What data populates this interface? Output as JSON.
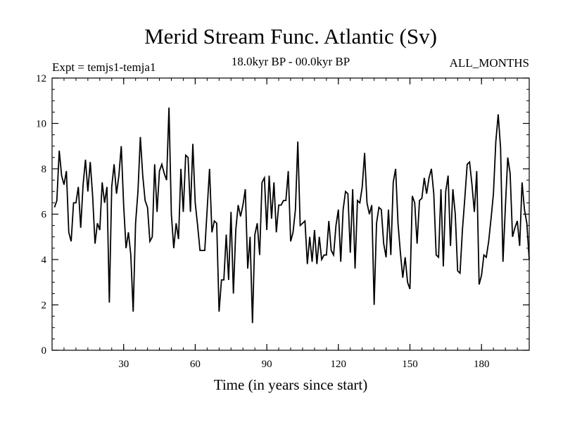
{
  "chart_data": {
    "type": "line",
    "title": "Merid Stream Func. Atlantic (Sv)",
    "subtitle_left": "Expt = temjs1-temja1",
    "subtitle_center": "18.0kyr BP - 00.0kyr BP",
    "subtitle_right": "ALL_MONTHS",
    "xlabel": "Time (in years since start)",
    "ylabel": "",
    "xlim": [
      0,
      200
    ],
    "ylim": [
      0,
      12
    ],
    "xticks": [
      30,
      60,
      90,
      120,
      150,
      180
    ],
    "yticks": [
      0,
      2,
      4,
      6,
      8,
      10,
      12
    ],
    "grid": false,
    "series": [
      {
        "name": "Merid Stream Func. Atlantic",
        "color": "#000000",
        "x": [
          1,
          2,
          3,
          4,
          5,
          6,
          7,
          8,
          9,
          10,
          11,
          12,
          13,
          14,
          15,
          16,
          17,
          18,
          19,
          20,
          21,
          22,
          23,
          24,
          25,
          26,
          27,
          28,
          29,
          30,
          31,
          32,
          33,
          34,
          35,
          36,
          37,
          38,
          39,
          40,
          41,
          42,
          43,
          44,
          45,
          46,
          47,
          48,
          49,
          50,
          51,
          52,
          53,
          54,
          55,
          56,
          57,
          58,
          59,
          60,
          61,
          62,
          63,
          64,
          65,
          66,
          67,
          68,
          69,
          70,
          71,
          72,
          73,
          74,
          75,
          76,
          77,
          78,
          79,
          80,
          81,
          82,
          83,
          84,
          85,
          86,
          87,
          88,
          89,
          90,
          91,
          92,
          93,
          94,
          95,
          96,
          97,
          98,
          99,
          100,
          101,
          102,
          103,
          104,
          105,
          106,
          107,
          108,
          109,
          110,
          111,
          112,
          113,
          114,
          115,
          116,
          117,
          118,
          119,
          120,
          121,
          122,
          123,
          124,
          125,
          126,
          127,
          128,
          129,
          130,
          131,
          132,
          133,
          134,
          135,
          136,
          137,
          138,
          139,
          140,
          141,
          142,
          143,
          144,
          145,
          146,
          147,
          148,
          149,
          150,
          151,
          152,
          153,
          154,
          155,
          156,
          157,
          158,
          159,
          160,
          161,
          162,
          163,
          164,
          165,
          166,
          167,
          168,
          169,
          170,
          171,
          172,
          173,
          174,
          175,
          176,
          177,
          178,
          179,
          180,
          181,
          182,
          183,
          184,
          185,
          186,
          187,
          188,
          189,
          190,
          191,
          192,
          193,
          194,
          195,
          196,
          197,
          198,
          199,
          200
        ],
        "values": [
          6.3,
          6.6,
          8.8,
          7.7,
          7.3,
          7.9,
          5.2,
          4.8,
          6.5,
          6.5,
          7.2,
          5.4,
          7.3,
          8.4,
          7.0,
          8.3,
          6.8,
          4.7,
          5.6,
          5.3,
          7.4,
          6.5,
          7.2,
          2.1,
          7.2,
          8.2,
          6.9,
          7.7,
          9.0,
          6.4,
          4.5,
          5.2,
          4.2,
          1.7,
          5.6,
          7.0,
          9.4,
          7.7,
          6.6,
          6.3,
          4.8,
          5.0,
          8.2,
          6.1,
          7.9,
          8.2,
          7.8,
          7.5,
          10.7,
          6.0,
          4.5,
          5.6,
          4.9,
          8.0,
          6.1,
          8.6,
          8.5,
          6.1,
          9.1,
          6.5,
          5.5,
          4.4,
          4.4,
          4.4,
          6.2,
          8.0,
          5.2,
          5.7,
          5.6,
          1.7,
          3.1,
          3.1,
          5.1,
          3.1,
          6.1,
          2.5,
          5.3,
          6.4,
          5.9,
          6.4,
          7.1,
          3.6,
          5.0,
          1.2,
          5.1,
          5.6,
          4.2,
          7.4,
          7.6,
          5.3,
          7.7,
          5.8,
          7.4,
          5.2,
          6.4,
          6.4,
          6.6,
          6.6,
          7.9,
          4.8,
          5.2,
          6.2,
          9.2,
          5.5,
          5.6,
          5.7,
          3.8,
          5.0,
          3.9,
          5.3,
          3.8,
          5.0,
          4.0,
          4.2,
          4.2,
          5.7,
          4.4,
          4.2,
          5.5,
          6.2,
          3.9,
          6.2,
          7.0,
          6.9,
          4.3,
          7.1,
          3.6,
          6.6,
          6.5,
          7.2,
          8.7,
          6.5,
          6.0,
          6.4,
          2.0,
          5.6,
          6.3,
          6.2,
          4.7,
          4.1,
          6.2,
          4.2,
          7.4,
          8.0,
          5.6,
          4.3,
          3.2,
          4.1,
          3.0,
          2.7,
          6.8,
          6.5,
          4.7,
          6.6,
          6.7,
          7.6,
          6.9,
          7.6,
          8.0,
          6.9,
          4.2,
          4.1,
          7.1,
          3.7,
          7.0,
          7.7,
          4.6,
          7.1,
          6.0,
          3.5,
          3.4,
          5.3,
          6.7,
          8.2,
          8.3,
          7.3,
          6.1,
          7.9,
          2.9,
          3.3,
          4.2,
          4.1,
          4.8,
          5.8,
          6.9,
          9.2,
          10.4,
          8.9,
          3.9,
          6.3,
          8.5,
          7.8,
          5.0,
          5.4,
          5.7,
          4.6,
          7.4,
          6.2,
          5.6,
          4.0
        ]
      }
    ]
  }
}
